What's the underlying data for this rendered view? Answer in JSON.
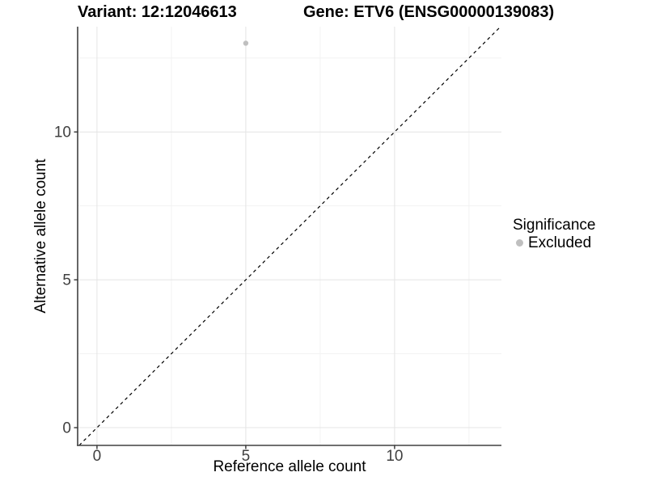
{
  "titles": {
    "left": "Variant: 12:12046613",
    "right": "Gene: ETV6 (ENSG00000139083)"
  },
  "chart_data": {
    "type": "scatter",
    "title": "Variant: 12:12046613 — Gene: ETV6 (ENSG00000139083)",
    "xlabel": "Reference allele count",
    "ylabel": "Alternative allele count",
    "xlim": [
      -0.65,
      13.59
    ],
    "ylim": [
      -0.6,
      13.56
    ],
    "xticks": [
      0,
      5,
      10
    ],
    "yticks": [
      0,
      5,
      10
    ],
    "minor_xticks": [
      2.5,
      7.5,
      12.5
    ],
    "minor_yticks": [
      2.5,
      7.5,
      12.5
    ],
    "grid": true,
    "points": [
      {
        "x": 5,
        "y": 13,
        "series": "Excluded"
      }
    ],
    "reference_line": {
      "type": "identity",
      "slope": 1,
      "intercept": 0,
      "style": "dashed"
    },
    "legend_position": "right",
    "colors": {
      "point": "#bfbfbf",
      "grid_major": "#e4e4e4",
      "grid_minor": "#f2f2f2",
      "axis_line": "#404040",
      "tick": "#333333",
      "tick_label": "#404040",
      "dashed_line": "#000000"
    }
  },
  "legend": {
    "title": "Significance",
    "entries": [
      {
        "label": "Excluded",
        "color": "#bfbfbf"
      }
    ]
  }
}
